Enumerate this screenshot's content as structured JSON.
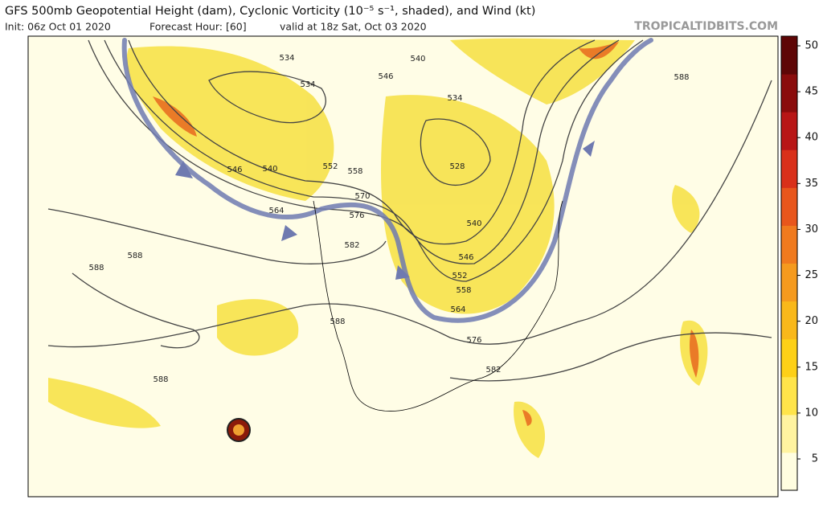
{
  "header": {
    "title": "GFS 500mb Geopotential Height (dam), Cyclonic Vorticity (10⁻⁵ s⁻¹, shaded), and Wind (kt)",
    "init": "Init: 06z Oct 01 2020",
    "forecast_hour": "Forecast Hour: [60]",
    "valid": "valid at 18z Sat, Oct 03 2020",
    "source": "TROPICALTIDBITS.COM"
  },
  "colorbar": {
    "ticks": [
      5,
      10,
      15,
      20,
      25,
      30,
      35,
      40,
      45,
      50
    ]
  },
  "contour_labels": [
    534,
    540,
    546,
    534,
    534,
    588,
    528,
    546,
    540,
    552,
    558,
    570,
    564,
    576,
    540,
    582,
    546,
    588,
    588,
    552,
    558,
    564,
    588,
    576,
    582,
    588
  ]
}
